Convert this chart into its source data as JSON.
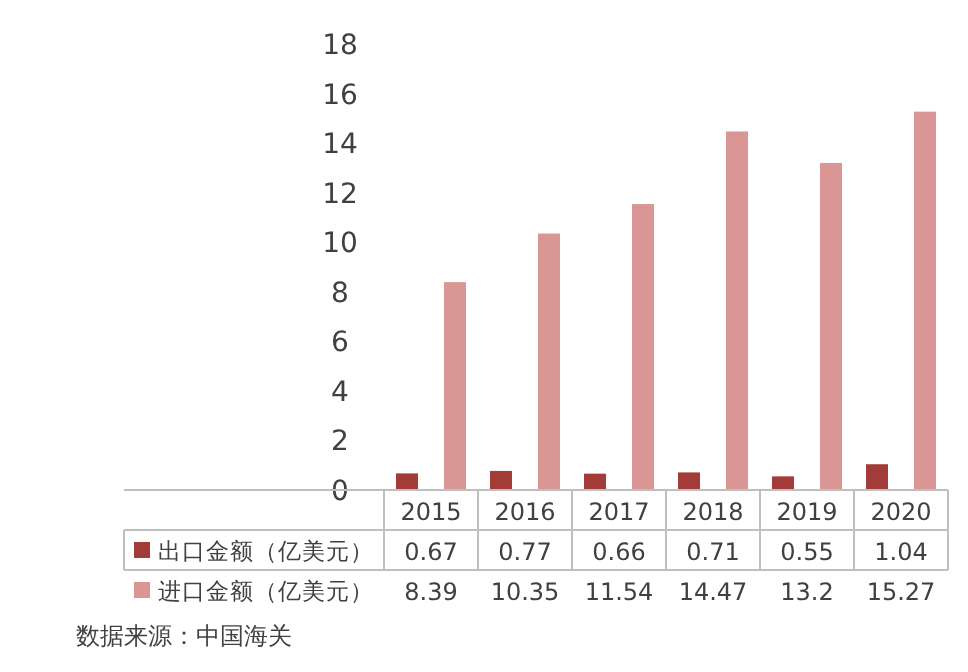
{
  "chart_data": {
    "type": "bar",
    "categories": [
      "2015",
      "2016",
      "2017",
      "2018",
      "2019",
      "2020"
    ],
    "series": [
      {
        "name": "出口金额（亿美元）",
        "color": "#a33b39",
        "values": [
          0.67,
          0.77,
          0.66,
          0.71,
          0.55,
          1.04
        ]
      },
      {
        "name": "进口金额（亿美元）",
        "color": "#d99694",
        "values": [
          8.39,
          10.35,
          11.54,
          14.47,
          13.2,
          15.27
        ]
      }
    ],
    "ylim": [
      0,
      18
    ],
    "yticks": [
      0,
      2,
      4,
      6,
      8,
      10,
      12,
      14,
      16,
      18
    ],
    "data_labels": true,
    "legend": "bottom",
    "annotations": [
      "数据来源：中国海关"
    ]
  }
}
